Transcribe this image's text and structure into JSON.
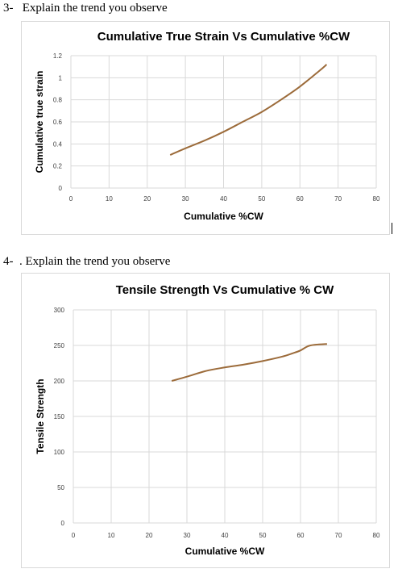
{
  "questions": {
    "q3": "3-   Explain the trend you observe",
    "q4": "4-  . Explain the trend you observe"
  },
  "chart_data": [
    {
      "type": "line",
      "title": "Cumulative True Strain Vs Cumulative %CW",
      "xlabel": "Cumulative %CW",
      "ylabel": "Cumulative true strain",
      "xlim": [
        0,
        80
      ],
      "ylim": [
        0,
        1.2
      ],
      "xticks": [
        "0",
        "10",
        "20",
        "30",
        "40",
        "50",
        "60",
        "70",
        "80"
      ],
      "yticks": [
        "0",
        "0.2",
        "0.4",
        "0.6",
        "0.8",
        "1",
        "1.2"
      ],
      "xtick_values": [
        0,
        10,
        20,
        30,
        40,
        50,
        60,
        70,
        80
      ],
      "ytick_values": [
        0,
        0.2,
        0.4,
        0.6,
        0.8,
        1.0,
        1.2
      ],
      "grid": true,
      "series": [
        {
          "color": "#9c6b3a",
          "x": [
            26,
            30,
            35,
            40,
            45,
            50,
            55,
            60,
            65,
            67
          ],
          "y": [
            0.3,
            0.36,
            0.43,
            0.51,
            0.6,
            0.69,
            0.8,
            0.92,
            1.06,
            1.12
          ]
        }
      ]
    },
    {
      "type": "line",
      "title": "Tensile Strength Vs Cumulative % CW",
      "xlabel": "Cumulative %CW",
      "ylabel": "Tensile Strength",
      "xlim": [
        0,
        80
      ],
      "ylim": [
        0,
        300
      ],
      "xticks": [
        "0",
        "10",
        "20",
        "30",
        "40",
        "50",
        "60",
        "70",
        "80"
      ],
      "yticks": [
        "0",
        "50",
        "100",
        "150",
        "200",
        "250",
        "300"
      ],
      "xtick_values": [
        0,
        10,
        20,
        30,
        40,
        50,
        60,
        70,
        80
      ],
      "ytick_values": [
        0,
        50,
        100,
        150,
        200,
        250,
        300
      ],
      "grid": true,
      "series": [
        {
          "color": "#9c6b3a",
          "x": [
            26,
            30,
            35,
            40,
            45,
            50,
            55,
            58,
            60,
            62,
            64,
            67
          ],
          "y": [
            200,
            206,
            214,
            219,
            223,
            228,
            234,
            239,
            243,
            249,
            251,
            252
          ]
        }
      ]
    }
  ]
}
